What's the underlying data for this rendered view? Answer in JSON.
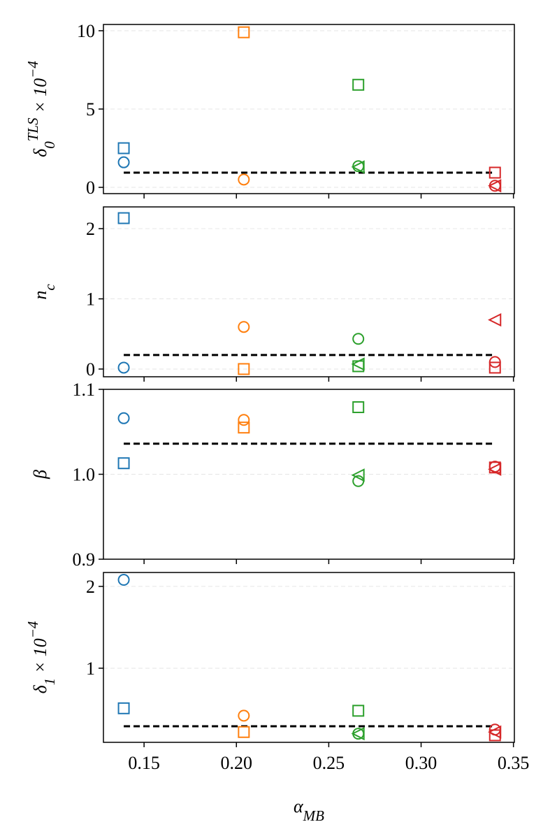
{
  "chart_data": [
    {
      "type": "scatter",
      "ylabel": [
        "δ",
        "0",
        "TLS",
        " × 10",
        "−4"
      ],
      "ylabel_style": [
        "",
        "sub",
        "sup",
        "",
        "sup"
      ],
      "xlim": [
        0.128,
        0.3505
      ],
      "xticks": [
        0.15,
        0.2,
        0.25,
        0.3,
        0.35
      ],
      "ylim": [
        -0.4,
        10.4
      ],
      "yticks": [
        0,
        5,
        10
      ],
      "grid": true,
      "series": [
        {
          "marker": "square",
          "colors": [
            "#1f77b4",
            "#ff7f0e",
            "#2ca02c",
            "#d62728"
          ],
          "x": [
            0.139,
            0.204,
            0.266,
            0.34
          ],
          "values": [
            2.5,
            9.9,
            6.55,
            0.94
          ]
        },
        {
          "marker": "circle",
          "colors": [
            "#1f77b4",
            "#ff7f0e",
            "#2ca02c",
            "#d62728"
          ],
          "x": [
            0.139,
            0.204,
            0.266,
            0.34
          ],
          "values": [
            1.6,
            0.5,
            1.35,
            0.1
          ]
        },
        {
          "marker": "triangle",
          "colors": [
            "#2ca02c",
            "#d62728"
          ],
          "x": [
            0.266,
            0.34
          ],
          "values": [
            1.3,
            0.1
          ]
        }
      ],
      "reference": {
        "color": "#000000",
        "x": [
          0.139,
          0.34
        ],
        "values": [
          0.94,
          0.94
        ]
      }
    },
    {
      "type": "scatter",
      "ylabel": [
        "n",
        "c"
      ],
      "ylabel_style": [
        "",
        "sub"
      ],
      "xlim": [
        0.128,
        0.3505
      ],
      "xticks": [
        0.15,
        0.2,
        0.25,
        0.3,
        0.35
      ],
      "ylim": [
        -0.11,
        2.31
      ],
      "yticks": [
        0,
        1,
        2
      ],
      "grid": true,
      "series": [
        {
          "marker": "square",
          "colors": [
            "#1f77b4",
            "#ff7f0e",
            "#2ca02c",
            "#d62728"
          ],
          "x": [
            0.139,
            0.204,
            0.266,
            0.34
          ],
          "values": [
            2.15,
            0,
            0.04,
            0.02
          ]
        },
        {
          "marker": "circle",
          "colors": [
            "#1f77b4",
            "#ff7f0e",
            "#2ca02c",
            "#d62728"
          ],
          "x": [
            0.139,
            0.204,
            0.266,
            0.34
          ],
          "values": [
            0.02,
            0.6,
            0.43,
            0.1
          ]
        },
        {
          "marker": "triangle",
          "colors": [
            "#2ca02c",
            "#d62728"
          ],
          "x": [
            0.266,
            0.34
          ],
          "values": [
            0.07,
            0.7
          ]
        }
      ],
      "reference": {
        "color": "#000000",
        "x": [
          0.139,
          0.34
        ],
        "values": [
          0.2,
          0.2
        ]
      }
    },
    {
      "type": "scatter",
      "ylabel": [
        "β"
      ],
      "ylabel_style": [
        ""
      ],
      "xlim": [
        0.128,
        0.3505
      ],
      "xticks": [
        0.15,
        0.2,
        0.25,
        0.3,
        0.35
      ],
      "ylim": [
        0.9,
        1.1
      ],
      "yticks": [
        {
          "value": 0.9,
          "label": "0.9"
        },
        {
          "value": 1.0,
          "label": "1.0"
        },
        {
          "value": 1.1,
          "label": "1.1"
        }
      ],
      "grid": true,
      "series": [
        {
          "marker": "square",
          "colors": [
            "#1f77b4",
            "#ff7f0e",
            "#2ca02c",
            "#d62728"
          ],
          "x": [
            0.139,
            0.204,
            0.266,
            0.34
          ],
          "values": [
            1.013,
            1.055,
            1.079,
            1.008
          ]
        },
        {
          "marker": "circle",
          "colors": [
            "#1f77b4",
            "#ff7f0e",
            "#2ca02c",
            "#d62728"
          ],
          "x": [
            0.139,
            0.204,
            0.266,
            0.34
          ],
          "values": [
            1.066,
            1.064,
            0.992,
            1.009
          ]
        },
        {
          "marker": "triangle",
          "colors": [
            "#2ca02c",
            "#d62728"
          ],
          "x": [
            0.266,
            0.34
          ],
          "values": [
            0.999,
            1.006
          ]
        }
      ],
      "reference": {
        "color": "#000000",
        "x": [
          0.139,
          0.34
        ],
        "values": [
          1.036,
          1.036
        ]
      }
    },
    {
      "type": "scatter",
      "ylabel": [
        "δ",
        "1",
        " × 10",
        "−4"
      ],
      "ylabel_style": [
        "",
        "sub",
        "",
        "sup"
      ],
      "xlabel": [
        "α",
        "MB"
      ],
      "xlabel_style": [
        "",
        "sub"
      ],
      "xlim": [
        0.128,
        0.3505
      ],
      "xticks": [
        0.15,
        {
          "value": 0.2,
          "label": "0.20"
        },
        0.25,
        {
          "value": 0.3,
          "label": "0.30"
        },
        0.35
      ],
      "ylim": [
        0.094,
        2.17
      ],
      "yticks": [
        1,
        2
      ],
      "grid": true,
      "series": [
        {
          "marker": "square",
          "colors": [
            "#1f77b4",
            "#ff7f0e",
            "#2ca02c",
            "#d62728"
          ],
          "x": [
            0.139,
            0.204,
            0.266,
            0.34
          ],
          "values": [
            0.51,
            0.22,
            0.48,
            0.18
          ]
        },
        {
          "marker": "circle",
          "colors": [
            "#1f77b4",
            "#ff7f0e",
            "#2ca02c",
            "#d62728"
          ],
          "x": [
            0.139,
            0.204,
            0.266,
            0.34
          ],
          "values": [
            2.08,
            0.42,
            0.2,
            0.25
          ]
        },
        {
          "marker": "triangle",
          "colors": [
            "#2ca02c",
            "#d62728"
          ],
          "x": [
            0.266,
            0.34
          ],
          "values": [
            0.2,
            0.22
          ]
        }
      ],
      "reference": {
        "color": "#000000",
        "x": [
          0.139,
          0.34
        ],
        "values": [
          0.29,
          0.29
        ]
      }
    }
  ]
}
